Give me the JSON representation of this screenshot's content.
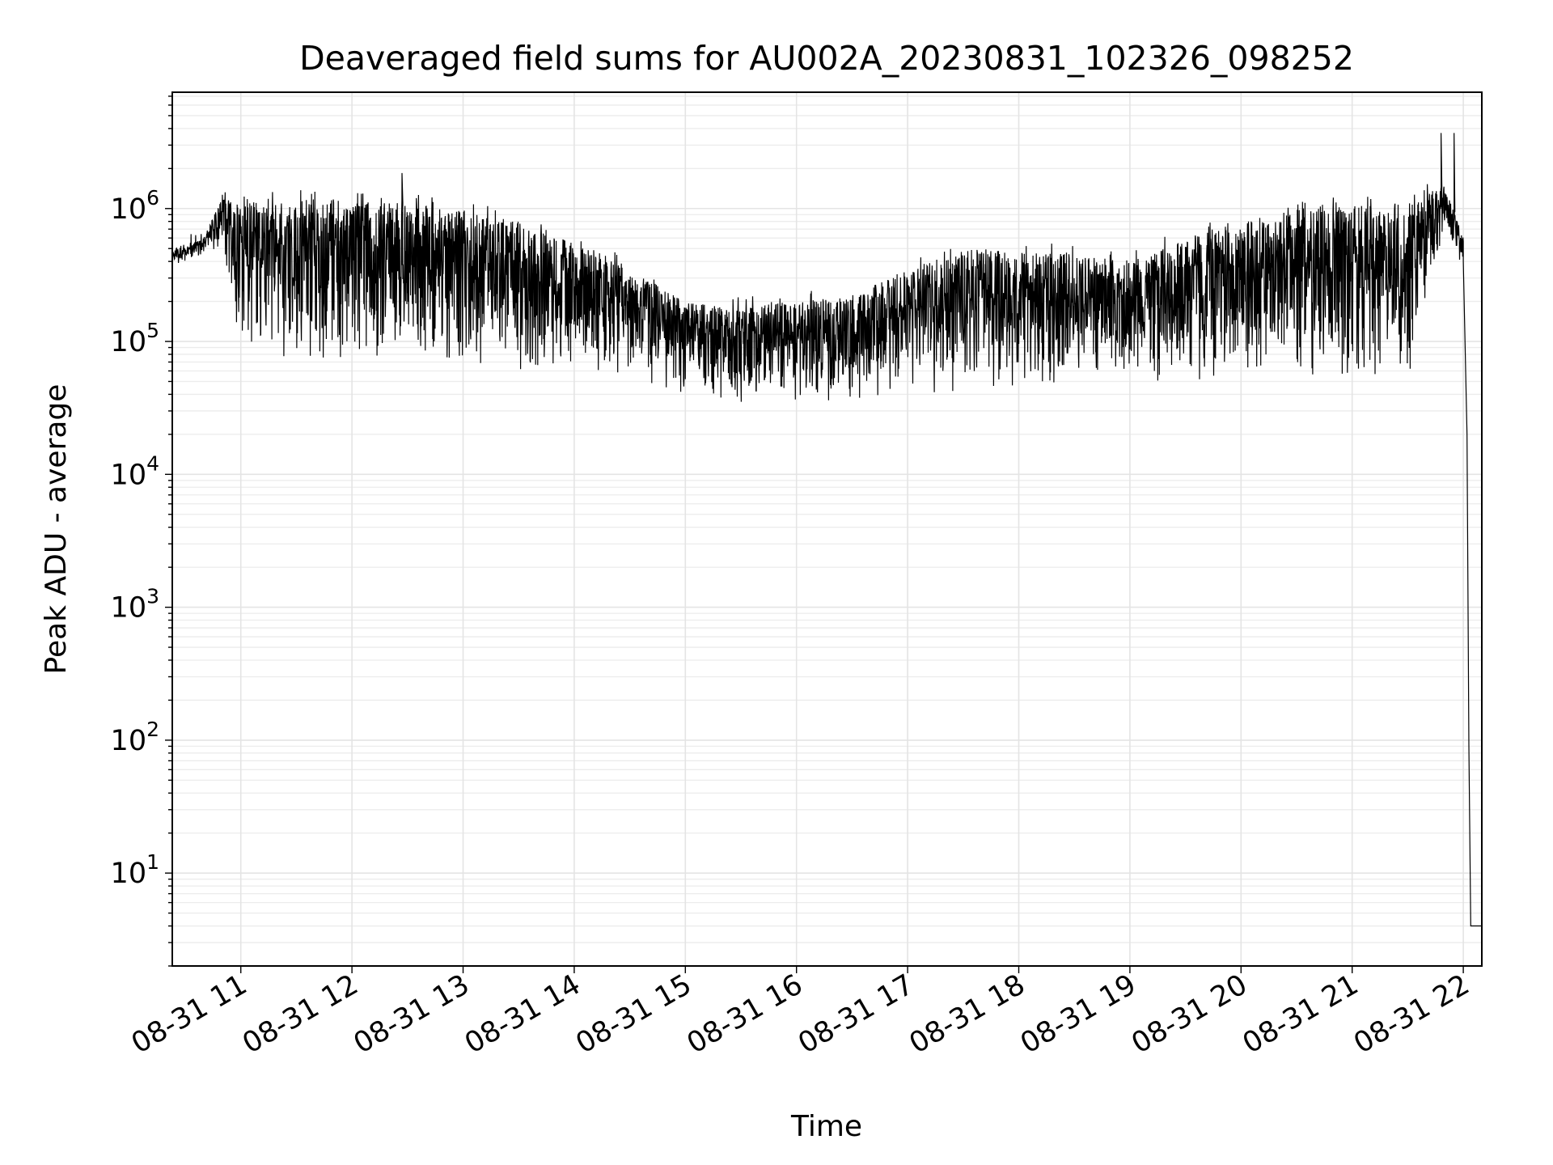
{
  "chart_data": {
    "type": "line",
    "title": "Deaveraged field sums for AU002A_20230831_102326_098252",
    "xlabel": "Time",
    "ylabel": "Peak ADU - average",
    "xscale": "time",
    "yscale": "log",
    "xlim": [
      "2023-08-31 10:23",
      "2023-08-31 22:10"
    ],
    "ylim": [
      2,
      7500000
    ],
    "grid": true,
    "legend": "none",
    "line_color": "#000000",
    "x_ticks": [
      {
        "label": "08-31 11",
        "hour": 11
      },
      {
        "label": "08-31 12",
        "hour": 12
      },
      {
        "label": "08-31 13",
        "hour": 13
      },
      {
        "label": "08-31 14",
        "hour": 14
      },
      {
        "label": "08-31 15",
        "hour": 15
      },
      {
        "label": "08-31 16",
        "hour": 16
      },
      {
        "label": "08-31 17",
        "hour": 17
      },
      {
        "label": "08-31 18",
        "hour": 18
      },
      {
        "label": "08-31 19",
        "hour": 19
      },
      {
        "label": "08-31 20",
        "hour": 20
      },
      {
        "label": "08-31 21",
        "hour": 21
      },
      {
        "label": "08-31 22",
        "hour": 22
      }
    ],
    "y_ticks": [
      {
        "base": "10",
        "exp": "1",
        "value": 10
      },
      {
        "base": "10",
        "exp": "2",
        "value": 100
      },
      {
        "base": "10",
        "exp": "3",
        "value": 1000
      },
      {
        "base": "10",
        "exp": "4",
        "value": 10000
      },
      {
        "base": "10",
        "exp": "5",
        "value": 100000
      },
      {
        "base": "10",
        "exp": "6",
        "value": 1000000
      }
    ],
    "series": [
      {
        "upper_envelope": [
          {
            "time": "10:23",
            "value": 500000
          },
          {
            "time": "10:40",
            "value": 600000
          },
          {
            "time": "10:50",
            "value": 1200000
          },
          {
            "time": "11:00",
            "value": 1100000
          },
          {
            "time": "11:30",
            "value": 1200000
          },
          {
            "time": "12:00",
            "value": 1150000
          },
          {
            "time": "12:30",
            "value": 1100000
          },
          {
            "time": "13:00",
            "value": 950000
          },
          {
            "time": "13:30",
            "value": 800000
          },
          {
            "time": "14:00",
            "value": 550000
          },
          {
            "time": "14:30",
            "value": 350000
          },
          {
            "time": "15:00",
            "value": 200000
          },
          {
            "time": "15:30",
            "value": 180000
          },
          {
            "time": "16:00",
            "value": 200000
          },
          {
            "time": "16:30",
            "value": 220000
          },
          {
            "time": "17:00",
            "value": 350000
          },
          {
            "time": "17:30",
            "value": 480000
          },
          {
            "time": "18:00",
            "value": 480000
          },
          {
            "time": "18:30",
            "value": 450000
          },
          {
            "time": "19:00",
            "value": 400000
          },
          {
            "time": "19:30",
            "value": 600000
          },
          {
            "time": "20:00",
            "value": 800000
          },
          {
            "time": "20:30",
            "value": 1000000
          },
          {
            "time": "21:00",
            "value": 1050000
          },
          {
            "time": "21:30",
            "value": 1100000
          },
          {
            "time": "21:50",
            "value": 1500000
          },
          {
            "time": "22:00",
            "value": 600000
          }
        ],
        "lower_envelope": [
          {
            "time": "10:23",
            "value": 350000
          },
          {
            "time": "10:40",
            "value": 450000
          },
          {
            "time": "10:50",
            "value": 500000
          },
          {
            "time": "11:00",
            "value": 70000
          },
          {
            "time": "11:30",
            "value": 65000
          },
          {
            "time": "12:00",
            "value": 65000
          },
          {
            "time": "12:30",
            "value": 65000
          },
          {
            "time": "13:00",
            "value": 65000
          },
          {
            "time": "13:30",
            "value": 60000
          },
          {
            "time": "14:00",
            "value": 60000
          },
          {
            "time": "14:30",
            "value": 50000
          },
          {
            "time": "15:00",
            "value": 38000
          },
          {
            "time": "15:30",
            "value": 32000
          },
          {
            "time": "16:00",
            "value": 32000
          },
          {
            "time": "16:30",
            "value": 32000
          },
          {
            "time": "17:00",
            "value": 38000
          },
          {
            "time": "17:30",
            "value": 42000
          },
          {
            "time": "18:00",
            "value": 42000
          },
          {
            "time": "18:30",
            "value": 44000
          },
          {
            "time": "19:00",
            "value": 45000
          },
          {
            "time": "19:30",
            "value": 45000
          },
          {
            "time": "20:00",
            "value": 48000
          },
          {
            "time": "20:30",
            "value": 48000
          },
          {
            "time": "21:00",
            "value": 50000
          },
          {
            "time": "21:30",
            "value": 50000
          },
          {
            "time": "21:50",
            "value": 700000
          },
          {
            "time": "22:00",
            "value": 300000
          }
        ],
        "spikes": [
          {
            "time": "12:27",
            "value": 1850000
          },
          {
            "time": "21:48",
            "value": 3700000
          },
          {
            "time": "21:55",
            "value": 3700000
          }
        ],
        "tail": [
          {
            "time": "22:00",
            "value": 400000
          },
          {
            "time": "22:02",
            "value": 20000
          },
          {
            "time": "22:03",
            "value": 90
          },
          {
            "time": "22:04",
            "value": 4
          },
          {
            "time": "22:10",
            "value": 4
          }
        ]
      }
    ]
  }
}
